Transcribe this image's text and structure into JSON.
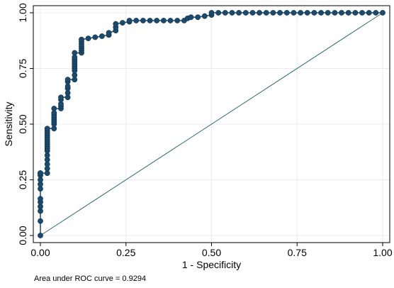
{
  "chart_data": {
    "type": "line",
    "xlabel": "1 - Specificity",
    "ylabel": "Sensitivity",
    "xlim": [
      0,
      1
    ],
    "ylim": [
      0,
      1
    ],
    "xticks": [
      "0.00",
      "0.25",
      "0.50",
      "0.75",
      "1.00"
    ],
    "yticks": [
      "0.00",
      "0.25",
      "0.50",
      "0.75",
      "1.00"
    ],
    "grid": true,
    "annotation": "Area under ROC curve = 0.9294",
    "colors": {
      "plot_background": "#ffffff",
      "frame": "#000000",
      "grid": "#e8ecef",
      "curve": "#1a4a6e",
      "marker": "#1a4a6e",
      "reference": "#2f6c66"
    },
    "reference_line": {
      "x": [
        0,
        1
      ],
      "y": [
        0,
        1
      ]
    },
    "series": [
      {
        "x": [
          0.0,
          0.0,
          0.0,
          0.0,
          0.0,
          0.0,
          0.0,
          0.0,
          0.0,
          0.0,
          0.0,
          0.0,
          0.0,
          0.0,
          0.02,
          0.02,
          0.02,
          0.02,
          0.02,
          0.02,
          0.02,
          0.02,
          0.02,
          0.02,
          0.02,
          0.02,
          0.02,
          0.02,
          0.02,
          0.02,
          0.04,
          0.04,
          0.04,
          0.04,
          0.04,
          0.04,
          0.04,
          0.04,
          0.06,
          0.06,
          0.06,
          0.06,
          0.06,
          0.08,
          0.08,
          0.08,
          0.08,
          0.08,
          0.08,
          0.1,
          0.1,
          0.1,
          0.1,
          0.1,
          0.1,
          0.1,
          0.1,
          0.1,
          0.1,
          0.12,
          0.12,
          0.12,
          0.12,
          0.12,
          0.12,
          0.12,
          0.14,
          0.16,
          0.18,
          0.2,
          0.2,
          0.22,
          0.22,
          0.22,
          0.24,
          0.26,
          0.26,
          0.28,
          0.3,
          0.32,
          0.34,
          0.36,
          0.38,
          0.4,
          0.42,
          0.43,
          0.44,
          0.46,
          0.48,
          0.5,
          0.5,
          0.52,
          0.54,
          0.56,
          0.58,
          0.6,
          0.62,
          0.64,
          0.66,
          0.68,
          0.7,
          0.72,
          0.74,
          0.76,
          0.78,
          0.8,
          0.82,
          0.84,
          0.86,
          0.88,
          0.9,
          0.92,
          0.94,
          0.96,
          0.98,
          1.0
        ],
        "y": [
          0.0,
          0.065,
          0.11,
          0.13,
          0.15,
          0.165,
          0.21,
          0.23,
          0.25,
          0.27,
          0.28,
          0.28,
          0.28,
          0.28,
          0.28,
          0.3,
          0.32,
          0.34,
          0.36,
          0.38,
          0.39,
          0.4,
          0.41,
          0.42,
          0.43,
          0.44,
          0.45,
          0.46,
          0.47,
          0.48,
          0.48,
          0.5,
          0.51,
          0.52,
          0.53,
          0.54,
          0.55,
          0.57,
          0.57,
          0.58,
          0.59,
          0.61,
          0.62,
          0.62,
          0.64,
          0.66,
          0.67,
          0.69,
          0.7,
          0.7,
          0.72,
          0.74,
          0.75,
          0.76,
          0.77,
          0.78,
          0.79,
          0.8,
          0.82,
          0.82,
          0.83,
          0.84,
          0.85,
          0.86,
          0.87,
          0.88,
          0.885,
          0.89,
          0.895,
          0.9,
          0.91,
          0.92,
          0.935,
          0.95,
          0.955,
          0.96,
          0.965,
          0.965,
          0.965,
          0.965,
          0.965,
          0.965,
          0.965,
          0.965,
          0.965,
          0.975,
          0.98,
          0.98,
          0.985,
          0.99,
          1.0,
          1.0,
          1.0,
          1.0,
          1.0,
          1.0,
          1.0,
          1.0,
          1.0,
          1.0,
          1.0,
          1.0,
          1.0,
          1.0,
          1.0,
          1.0,
          1.0,
          1.0,
          1.0,
          1.0,
          1.0,
          1.0,
          1.0,
          1.0,
          1.0,
          1.0
        ]
      }
    ]
  }
}
